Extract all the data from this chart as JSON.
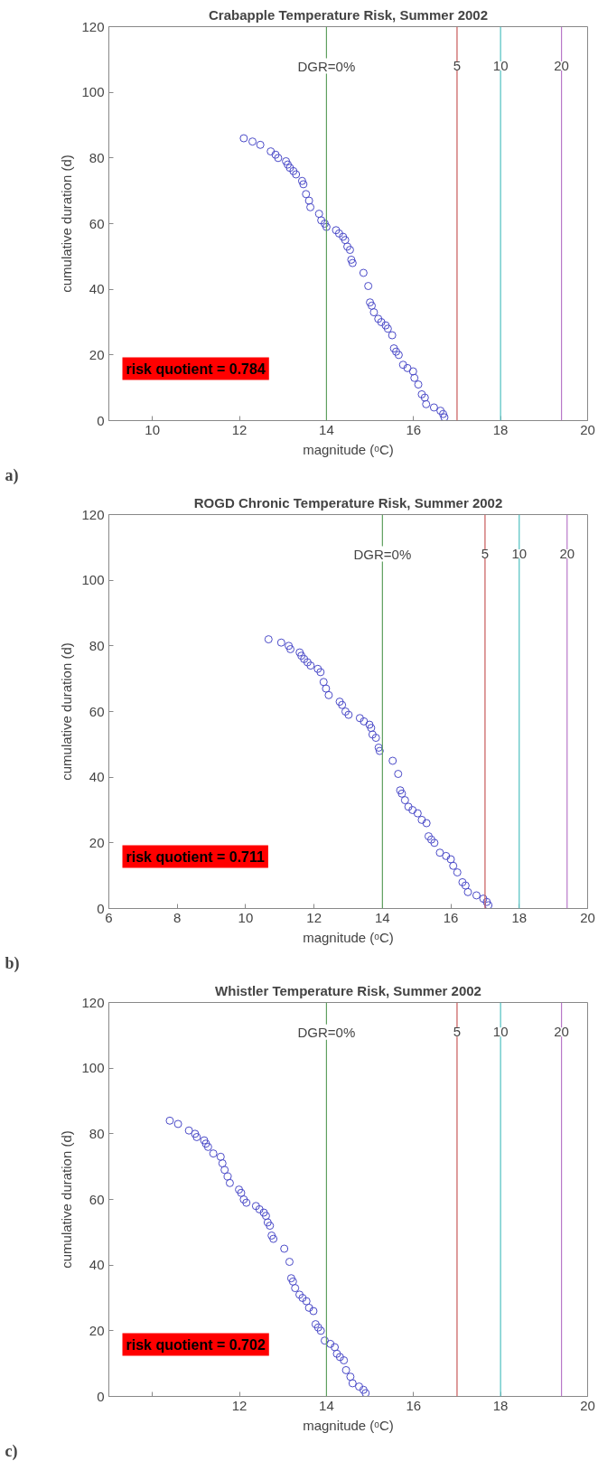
{
  "chart_data": [
    {
      "type": "scatter",
      "title": "Crabapple Temperature Risk, Summer 2002",
      "xlabel": "magnitude (ᵒC)",
      "ylabel": "cumulative duration (d)",
      "annotations": [
        "risk quotient = 0.784",
        "a)",
        {
          "text": "DGR=0%",
          "x": 14,
          "y": 108
        },
        {
          "text": "5",
          "x": 17,
          "y": 108
        },
        {
          "text": "10",
          "x": 18,
          "y": 108
        },
        {
          "text": "20",
          "x": 19.4,
          "y": 108
        }
      ],
      "xlim": [
        9,
        20
      ],
      "xticks": [
        10,
        12,
        14,
        16,
        18,
        20
      ],
      "ylim": [
        0,
        120
      ],
      "yticks": [
        0,
        20,
        40,
        60,
        80,
        100,
        120
      ],
      "grid": false,
      "marker": "circle",
      "x": [
        12.1,
        12.3,
        12.48,
        12.72,
        12.83,
        12.89,
        13.07,
        13.11,
        13.16,
        13.24,
        13.3,
        13.44,
        13.47,
        13.53,
        13.6,
        13.63,
        13.83,
        13.88,
        13.96,
        14.0,
        14.22,
        14.29,
        14.38,
        14.43,
        14.48,
        14.54,
        14.57,
        14.6,
        14.85,
        14.96,
        15.0,
        15.04,
        15.09,
        15.19,
        15.26,
        15.36,
        15.41,
        15.51,
        15.55,
        15.6,
        15.66,
        15.76,
        15.86,
        15.99,
        16.02,
        16.11,
        16.19,
        16.26,
        16.29,
        16.47,
        16.62,
        16.68,
        16.71
      ],
      "series": [
        {
          "color": "#4a4ac8",
          "values": [
            86,
            85,
            84,
            82,
            81,
            80,
            79,
            78,
            77,
            76,
            75,
            73,
            72,
            69,
            67,
            65,
            63,
            61,
            60,
            59,
            58,
            57,
            56,
            55,
            53,
            52,
            49,
            48,
            45,
            41,
            36,
            35,
            33,
            31,
            30,
            29,
            28,
            26,
            22,
            21,
            20,
            17,
            16,
            15,
            13,
            11,
            8,
            7,
            5,
            4,
            3,
            2,
            1
          ]
        }
      ],
      "ref_lines": [
        {
          "axis": "x",
          "value": 14,
          "color": "#5f9f5f"
        },
        {
          "axis": "x",
          "value": 17,
          "color": "#c85a5a"
        },
        {
          "axis": "x",
          "value": 18,
          "color": "#4fc0c0"
        },
        {
          "axis": "x",
          "value": 19.4,
          "color": "#b878c8"
        }
      ]
    },
    {
      "type": "scatter",
      "title": "ROGD Chronic Temperature Risk, Summer 2002",
      "xlabel": "magnitude (ᵒC)",
      "ylabel": "cumulative duration (d)",
      "annotations": [
        "risk quotient = 0.711",
        "b)",
        {
          "text": "DGR=0%",
          "x": 14,
          "y": 108
        },
        {
          "text": "5",
          "x": 17,
          "y": 108
        },
        {
          "text": "10",
          "x": 18,
          "y": 108
        },
        {
          "text": "20",
          "x": 19.4,
          "y": 108
        }
      ],
      "xlim": [
        6,
        20
      ],
      "xticks": [
        6,
        8,
        10,
        12,
        14,
        16,
        18,
        20
      ],
      "ylim": [
        0,
        120
      ],
      "yticks": [
        0,
        20,
        40,
        60,
        80,
        100,
        120
      ],
      "grid": false,
      "marker": "circle",
      "x": [
        10.67,
        11.04,
        11.26,
        11.31,
        11.58,
        11.63,
        11.71,
        11.81,
        11.9,
        12.11,
        12.19,
        12.28,
        12.35,
        12.43,
        12.75,
        12.82,
        12.92,
        13.01,
        13.34,
        13.46,
        13.62,
        13.67,
        13.71,
        13.81,
        13.89,
        13.92,
        14.3,
        14.46,
        14.52,
        14.57,
        14.66,
        14.76,
        14.88,
        15.03,
        15.15,
        15.29,
        15.35,
        15.43,
        15.52,
        15.68,
        15.86,
        16.0,
        16.07,
        16.19,
        16.34,
        16.43,
        16.5,
        16.75,
        16.95,
        17.05,
        17.1
      ],
      "series": [
        {
          "color": "#4a4ac8",
          "values": [
            82,
            81,
            80,
            79,
            78,
            77,
            76,
            75,
            74,
            73,
            72,
            69,
            67,
            65,
            63,
            62,
            60,
            59,
            58,
            57,
            56,
            55,
            53,
            52,
            49,
            48,
            45,
            41,
            36,
            35,
            33,
            31,
            30,
            29,
            27,
            26,
            22,
            21,
            20,
            17,
            16,
            15,
            13,
            11,
            8,
            7,
            5,
            4,
            3,
            2,
            1
          ]
        }
      ],
      "ref_lines": [
        {
          "axis": "x",
          "value": 14,
          "color": "#5f9f5f"
        },
        {
          "axis": "x",
          "value": 17,
          "color": "#c85a5a"
        },
        {
          "axis": "x",
          "value": 18,
          "color": "#4fc0c0"
        },
        {
          "axis": "x",
          "value": 19.4,
          "color": "#b878c8"
        }
      ]
    },
    {
      "type": "scatter",
      "title": "Whistler Temperature Risk, Summer 2002",
      "xlabel": "magnitude (ᵒC)",
      "ylabel": "cumulative duration (d)",
      "annotations": [
        "risk quotient = 0.702",
        "c)",
        {
          "text": "DGR=0%",
          "x": 14,
          "y": 111
        },
        {
          "text": "5",
          "x": 17,
          "y": 111
        },
        {
          "text": "10",
          "x": 18,
          "y": 111
        },
        {
          "text": "20",
          "x": 19.4,
          "y": 111
        }
      ],
      "xlim": [
        9,
        20
      ],
      "xticks": [
        {
          "value": 10,
          "label": null
        },
        12,
        14,
        16,
        18,
        20
      ],
      "ylim": [
        0,
        120
      ],
      "yticks": [
        0,
        20,
        40,
        60,
        80,
        100,
        120
      ],
      "grid": false,
      "marker": "circle",
      "x": [
        10.4,
        10.59,
        10.84,
        10.98,
        11.02,
        11.19,
        11.23,
        11.28,
        11.4,
        11.57,
        11.61,
        11.66,
        11.73,
        11.78,
        11.99,
        12.04,
        12.1,
        12.16,
        12.38,
        12.46,
        12.56,
        12.61,
        12.65,
        12.7,
        12.74,
        12.78,
        13.03,
        13.15,
        13.19,
        13.23,
        13.28,
        13.38,
        13.45,
        13.54,
        13.6,
        13.7,
        13.75,
        13.81,
        13.87,
        13.96,
        14.09,
        14.19,
        14.24,
        14.31,
        14.4,
        14.45,
        14.55,
        14.6,
        14.75,
        14.85,
        14.9
      ],
      "series": [
        {
          "color": "#4a4ac8",
          "values": [
            84,
            83,
            81,
            80,
            79,
            78,
            77,
            76,
            74,
            73,
            71,
            69,
            67,
            65,
            63,
            62,
            60,
            59,
            58,
            57,
            56,
            55,
            53,
            52,
            49,
            48,
            45,
            41,
            36,
            35,
            33,
            31,
            30,
            29,
            27,
            26,
            22,
            21,
            20,
            17,
            16,
            15,
            13,
            12,
            11,
            8,
            6,
            4,
            3,
            2,
            1
          ]
        }
      ],
      "ref_lines": [
        {
          "axis": "x",
          "value": 14,
          "color": "#5f9f5f"
        },
        {
          "axis": "x",
          "value": 17,
          "color": "#c85a5a"
        },
        {
          "axis": "x",
          "value": 18,
          "color": "#4fc0c0"
        },
        {
          "axis": "x",
          "value": 19.4,
          "color": "#b878c8"
        }
      ]
    }
  ]
}
